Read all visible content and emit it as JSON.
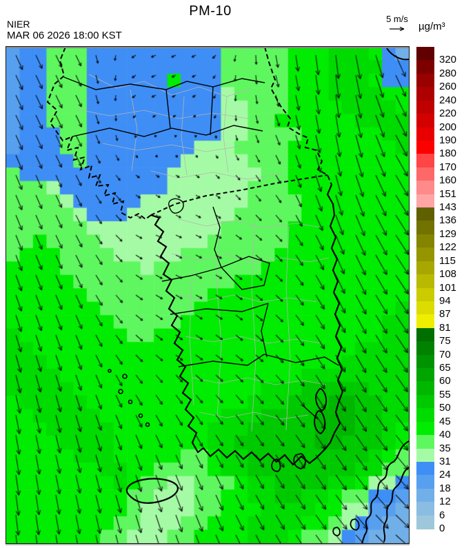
{
  "header": {
    "agency": "NIER",
    "datetime": "MAR 06 2026 18:00 KST",
    "title": "PM-10",
    "wind_ref_label": "5 m/s",
    "unit_label": "µg/m³"
  },
  "colorbar": {
    "tick_labels_top_to_bottom": [
      "320",
      "280",
      "260",
      "240",
      "220",
      "200",
      "190",
      "180",
      "170",
      "160",
      "151",
      "143",
      "136",
      "129",
      "122",
      "115",
      "108",
      "101",
      "94",
      "87",
      "81",
      "75",
      "70",
      "65",
      "60",
      "55",
      "50",
      "45",
      "40",
      "35",
      "31",
      "24",
      "18",
      "12",
      "6",
      "0"
    ]
  },
  "map": {
    "level_colors_low_to_high": [
      "#9FC7DB",
      "#8ABDE1",
      "#71AFE8",
      "#57A0EF",
      "#3E8EF6",
      "#A5FBA5",
      "#5FF75F",
      "#00EC00",
      "#00DB00",
      "#00C900",
      "#00B700",
      "#00A500",
      "#009300",
      "#008100",
      "#006F00",
      "#EEEE00",
      "#DCDC00",
      "#CBCB00",
      "#B9B900",
      "#A7A700",
      "#959500",
      "#848400",
      "#727200",
      "#606000",
      "#FFA5A5",
      "#FF8A8A",
      "#FF6868",
      "#FF4545",
      "#FC0000",
      "#E80000",
      "#D40000",
      "#C00000",
      "#AD0000",
      "#990000",
      "#7D0000",
      "#610000"
    ],
    "coast_color": "#000000",
    "district_line_color": "#b4b4b4",
    "grid_rows": [
      "344666444444444466666777888742",
      "344666444444444466666777888844",
      "344666444444744466666777888744",
      "344666444444444456666777888877",
      "344666444444444455666777788887",
      "344666444444444455667777778888",
      "344466444444444455666677777788",
      "344466444444445556666777777778",
      "444446444444455555666777777777",
      "644444444444555555566777777777",
      "666544444444555555666777777777",
      "666654444455555555666677777777",
      "666665444555555556666677777777",
      "666666555555555566666777777777",
      "667666655555555666666777777777",
      "677766665555566666667777777777",
      "777766666656666666677777777777",
      "777776666666666667777777777777",
      "777777666666666777777777777777",
      "777777766666667777777777777778",
      "777777776666677777777777777788",
      "877777777667777777777777777788",
      "887777777777777777777777778888",
      "888777777777777777777777788888",
      "888877777777777777777788888888",
      "888887777777777777788899999888",
      "788888777777777777888999AA9988",
      "77888887777777778889999AAA9988",
      "77788888777777788899999AAA9987",
      "77778888777777788999999AA99987",
      "777778887777766788999999999876",
      "777777788776666788999999998866",
      "777777778766556667889999887554",
      "777777777665556677889988766443",
      "777777777655556677788887755332",
      "777777776655566777888877654322",
      "777777766555667777888766543222"
    ]
  },
  "wind": {
    "grid_cols": 7,
    "grid_rows": 9,
    "uv": [
      [
        [
          10,
          22
        ],
        [
          8,
          16
        ],
        [
          -7,
          3
        ],
        [
          -6,
          3
        ],
        [
          3,
          18
        ],
        [
          4,
          36
        ],
        [
          16,
          30
        ]
      ],
      [
        [
          10,
          22
        ],
        [
          9,
          18
        ],
        [
          -6,
          3
        ],
        [
          -4,
          3
        ],
        [
          5,
          16
        ],
        [
          5,
          34
        ],
        [
          18,
          30
        ]
      ],
      [
        [
          9,
          22
        ],
        [
          8,
          16
        ],
        [
          5,
          3
        ],
        [
          5,
          4
        ],
        [
          7,
          12
        ],
        [
          8,
          32
        ],
        [
          20,
          30
        ]
      ],
      [
        [
          9,
          23
        ],
        [
          9,
          18
        ],
        [
          9,
          4
        ],
        [
          8,
          4
        ],
        [
          9,
          9
        ],
        [
          12,
          30
        ],
        [
          20,
          28
        ]
      ],
      [
        [
          8,
          24
        ],
        [
          9,
          20
        ],
        [
          10,
          6
        ],
        [
          9,
          5
        ],
        [
          10,
          9
        ],
        [
          14,
          28
        ],
        [
          19,
          27
        ]
      ],
      [
        [
          7,
          26
        ],
        [
          8,
          22
        ],
        [
          10,
          9
        ],
        [
          10,
          7
        ],
        [
          11,
          11
        ],
        [
          14,
          26
        ],
        [
          18,
          25
        ]
      ],
      [
        [
          5,
          28
        ],
        [
          7,
          25
        ],
        [
          9,
          18
        ],
        [
          10,
          14
        ],
        [
          12,
          15
        ],
        [
          15,
          24
        ],
        [
          18,
          23
        ]
      ],
      [
        [
          4,
          30
        ],
        [
          6,
          27
        ],
        [
          8,
          25
        ],
        [
          10,
          22
        ],
        [
          12,
          20
        ],
        [
          16,
          22
        ],
        [
          19,
          20
        ]
      ],
      [
        [
          3,
          30
        ],
        [
          5,
          28
        ],
        [
          8,
          27
        ],
        [
          10,
          25
        ],
        [
          13,
          22
        ],
        [
          17,
          20
        ],
        [
          21,
          17
        ]
      ]
    ]
  }
}
